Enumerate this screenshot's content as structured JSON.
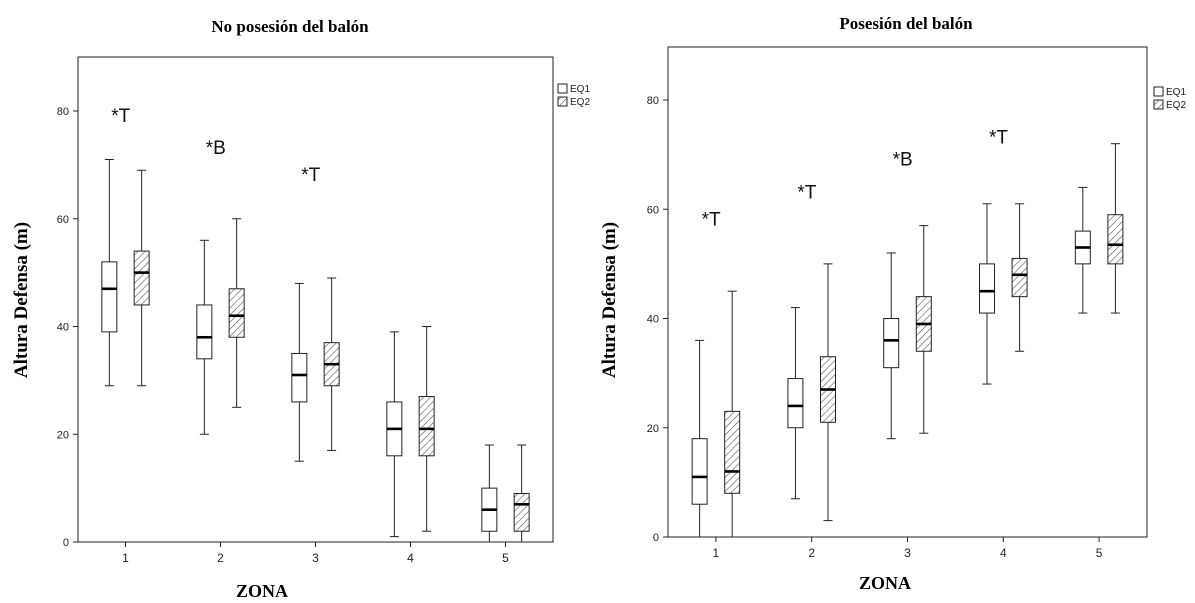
{
  "chart_data": [
    {
      "type": "boxplot",
      "title": "No posesión del balón",
      "xlabel": "ZONA",
      "ylabel": "Altura Defensa (m)",
      "categories": [
        "1",
        "2",
        "3",
        "4",
        "5"
      ],
      "ylim": [
        0,
        90
      ],
      "yticks": [
        "0",
        "20",
        "40",
        "60",
        "80"
      ],
      "legend": {
        "position": "right",
        "entries": [
          "EQ1",
          "EQ2"
        ]
      },
      "series": [
        {
          "name": "EQ1",
          "fill": "#ffffff",
          "boxes": [
            {
              "min": 29,
              "q1": 39,
              "median": 47,
              "q3": 52,
              "max": 71
            },
            {
              "min": 20,
              "q1": 34,
              "median": 38,
              "q3": 44,
              "max": 56
            },
            {
              "min": 15,
              "q1": 26,
              "median": 31,
              "q3": 35,
              "max": 48
            },
            {
              "min": 1,
              "q1": 16,
              "median": 21,
              "q3": 26,
              "max": 39
            },
            {
              "min": 0,
              "q1": 2,
              "median": 6,
              "q3": 10,
              "max": 18
            }
          ]
        },
        {
          "name": "EQ2",
          "fill": "hatched",
          "boxes": [
            {
              "min": 29,
              "q1": 44,
              "median": 50,
              "q3": 54,
              "max": 69
            },
            {
              "min": 25,
              "q1": 38,
              "median": 42,
              "q3": 47,
              "max": 60
            },
            {
              "min": 17,
              "q1": 29,
              "median": 33,
              "q3": 37,
              "max": 49
            },
            {
              "min": 2,
              "q1": 16,
              "median": 21,
              "q3": 27,
              "max": 40
            },
            {
              "min": 0,
              "q1": 2,
              "median": 7,
              "q3": 9,
              "max": 18
            }
          ]
        }
      ],
      "annotations": [
        {
          "text": "*T",
          "category": "1",
          "y": 78
        },
        {
          "text": "*B",
          "category": "2",
          "y": 72
        },
        {
          "text": "*T",
          "category": "3",
          "y": 67
        }
      ]
    },
    {
      "type": "boxplot",
      "title": "Posesión del balón",
      "xlabel": "ZONA",
      "ylabel": "Altura Defensa (m)",
      "categories": [
        "1",
        "2",
        "3",
        "4",
        "5"
      ],
      "ylim": [
        0,
        90
      ],
      "yticks": [
        "0",
        "20",
        "40",
        "60",
        "80"
      ],
      "legend": {
        "position": "right",
        "entries": [
          "EQ1",
          "EQ2"
        ]
      },
      "series": [
        {
          "name": "EQ1",
          "fill": "#ffffff",
          "boxes": [
            {
              "min": 0,
              "q1": 6,
              "median": 11,
              "q3": 18,
              "max": 36
            },
            {
              "min": 7,
              "q1": 20,
              "median": 24,
              "q3": 29,
              "max": 42
            },
            {
              "min": 18,
              "q1": 31,
              "median": 36,
              "q3": 40,
              "max": 52
            },
            {
              "min": 28,
              "q1": 41,
              "median": 45,
              "q3": 50,
              "max": 61
            },
            {
              "min": 41,
              "q1": 50,
              "median": 53,
              "q3": 56,
              "max": 64
            }
          ]
        },
        {
          "name": "EQ2",
          "fill": "hatched",
          "boxes": [
            {
              "min": 0,
              "q1": 8,
              "median": 12,
              "q3": 23,
              "max": 45
            },
            {
              "min": 3,
              "q1": 21,
              "median": 27,
              "q3": 33,
              "max": 50
            },
            {
              "min": 19,
              "q1": 34,
              "median": 39,
              "q3": 44,
              "max": 57
            },
            {
              "min": 34,
              "q1": 44,
              "median": 48,
              "q3": 51,
              "max": 61
            },
            {
              "min": 41,
              "q1": 50,
              "median": 53.5,
              "q3": 59,
              "max": 72
            }
          ]
        }
      ],
      "annotations": [
        {
          "text": "*T",
          "category": "1",
          "y": 57
        },
        {
          "text": "*T",
          "category": "2",
          "y": 62
        },
        {
          "text": "*B",
          "category": "3",
          "y": 68
        },
        {
          "text": "*T",
          "category": "4",
          "y": 72
        }
      ]
    }
  ]
}
